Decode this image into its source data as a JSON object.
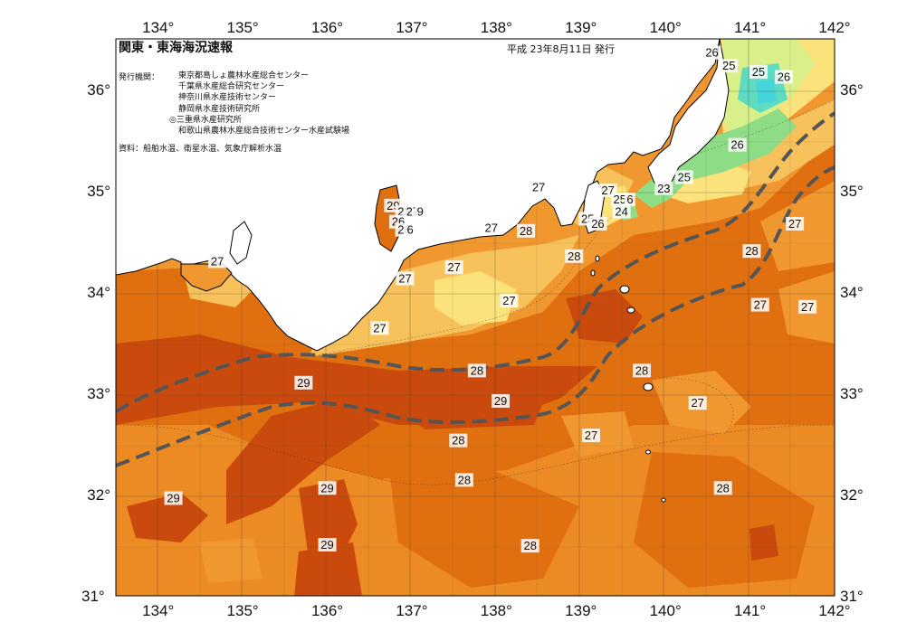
{
  "map": {
    "title": "関東・東海海況速報",
    "issue_date": "平成 23年8月11日 発行",
    "publisher_label": "発行機関：",
    "publishers": [
      "東京都島しょ農林水産総合センター",
      "千葉県水産総合研究センター",
      "神奈川県水産技術センター",
      "静岡県水産技術研究所",
      "◎三重県水産研究所",
      "和歌山県農林水産総合技術センター水産試験場"
    ],
    "data_source": "資料：船舶水温、衛星水温、気象庁解析水温"
  },
  "axes": {
    "longitude_labels": [
      "134°",
      "135°",
      "136°",
      "137°",
      "138°",
      "139°",
      "140°",
      "141°",
      "142°"
    ],
    "latitude_labels": [
      "36°",
      "35°",
      "34°",
      "33°",
      "32°",
      "31°"
    ],
    "lon_range": [
      133.5,
      142
    ],
    "lat_range": [
      31,
      36.5
    ]
  },
  "contour_labels": [
    {
      "text": "26",
      "lon": 140.55,
      "lat": 36.36
    },
    {
      "text": "25",
      "lon": 140.75,
      "lat": 36.23
    },
    {
      "text": "25",
      "lon": 141.1,
      "lat": 36.17
    },
    {
      "text": "26",
      "lon": 141.4,
      "lat": 36.12
    },
    {
      "text": "26",
      "lon": 140.85,
      "lat": 35.45
    },
    {
      "text": "25",
      "lon": 140.22,
      "lat": 35.13
    },
    {
      "text": "23",
      "lon": 139.98,
      "lat": 35.02
    },
    {
      "text": "27",
      "lon": 139.32,
      "lat": 35.0
    },
    {
      "text": "25",
      "lon": 139.46,
      "lat": 34.91
    },
    {
      "text": "6",
      "lon": 139.58,
      "lat": 34.91
    },
    {
      "text": "24",
      "lon": 139.48,
      "lat": 34.79
    },
    {
      "text": "25",
      "lon": 139.08,
      "lat": 34.72
    },
    {
      "text": "26",
      "lon": 139.2,
      "lat": 34.67
    },
    {
      "text": "27",
      "lon": 138.5,
      "lat": 35.03
    },
    {
      "text": "29",
      "lon": 136.78,
      "lat": 34.85
    },
    {
      "text": "28",
      "lon": 136.91,
      "lat": 34.79
    },
    {
      "text": "27",
      "lon": 137.01,
      "lat": 34.79
    },
    {
      "text": "9",
      "lon": 137.1,
      "lat": 34.79
    },
    {
      "text": "26",
      "lon": 136.84,
      "lat": 34.69
    },
    {
      "text": "28",
      "lon": 136.91,
      "lat": 34.61
    },
    {
      "text": "6",
      "lon": 136.98,
      "lat": 34.61
    },
    {
      "text": "27",
      "lon": 137.94,
      "lat": 34.63
    },
    {
      "text": "28",
      "lon": 138.35,
      "lat": 34.6
    },
    {
      "text": "28",
      "lon": 138.92,
      "lat": 34.35
    },
    {
      "text": "28",
      "lon": 141.02,
      "lat": 34.4
    },
    {
      "text": "27",
      "lon": 137.5,
      "lat": 34.24
    },
    {
      "text": "27",
      "lon": 136.92,
      "lat": 34.13
    },
    {
      "text": "27",
      "lon": 138.15,
      "lat": 33.91
    },
    {
      "text": "27",
      "lon": 136.62,
      "lat": 33.64
    },
    {
      "text": "27",
      "lon": 141.12,
      "lat": 33.87
    },
    {
      "text": "27",
      "lon": 141.68,
      "lat": 33.85
    },
    {
      "text": "27",
      "lon": 141.53,
      "lat": 34.67
    },
    {
      "text": "27",
      "lon": 134.7,
      "lat": 34.3
    },
    {
      "text": "28",
      "lon": 137.77,
      "lat": 33.22
    },
    {
      "text": "28",
      "lon": 139.72,
      "lat": 33.22
    },
    {
      "text": "29",
      "lon": 135.72,
      "lat": 33.1
    },
    {
      "text": "29",
      "lon": 138.05,
      "lat": 32.92
    },
    {
      "text": "27",
      "lon": 140.38,
      "lat": 32.9
    },
    {
      "text": "27",
      "lon": 139.12,
      "lat": 32.58
    },
    {
      "text": "28",
      "lon": 137.55,
      "lat": 32.53
    },
    {
      "text": "28",
      "lon": 137.62,
      "lat": 32.14
    },
    {
      "text": "28",
      "lon": 140.68,
      "lat": 32.06
    },
    {
      "text": "29",
      "lon": 136.0,
      "lat": 32.06
    },
    {
      "text": "29",
      "lon": 134.18,
      "lat": 31.96
    },
    {
      "text": "29",
      "lon": 136.0,
      "lat": 31.5
    },
    {
      "text": "28",
      "lon": 138.4,
      "lat": 31.49
    }
  ],
  "colors": {
    "t29": "#c94a0c",
    "t28": "#e0700f",
    "t27": "#f0982f",
    "t26": "#f7c25c",
    "t25": "#fbe27a",
    "t24": "#d9ef8a",
    "t23": "#8fdc86",
    "t22": "#5fdcc0",
    "land": "#ffffff",
    "kuroshio_path": "#555555"
  },
  "legend_words": {
    "kuroshio": "kuroshio-path-dashed"
  }
}
